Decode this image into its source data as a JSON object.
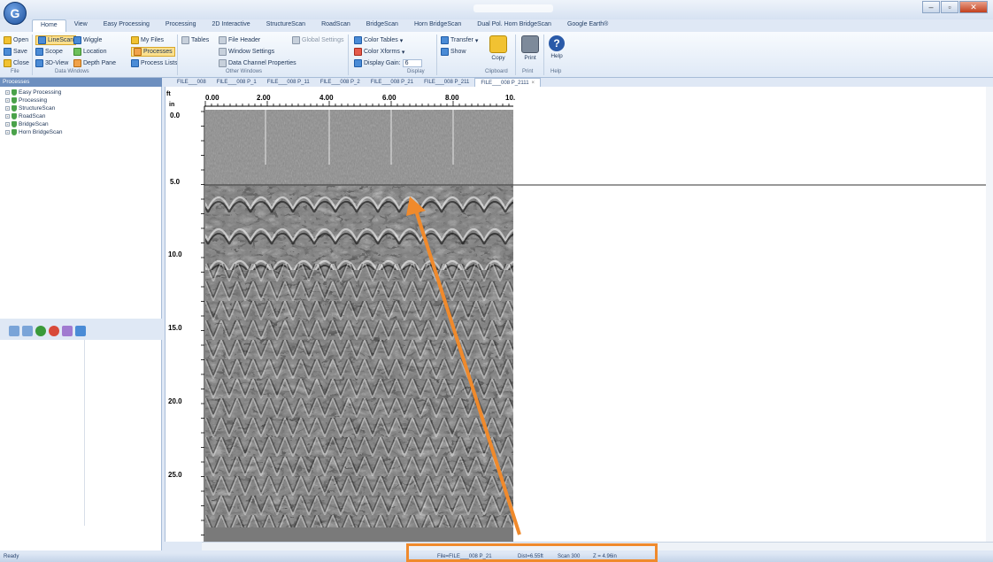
{
  "window": {
    "title_blurred": true,
    "orb_label": "G"
  },
  "tabs": [
    {
      "label": "Home",
      "active": true
    },
    {
      "label": "View"
    },
    {
      "label": "Easy Processing"
    },
    {
      "label": "Processing"
    },
    {
      "label": "2D Interactive"
    },
    {
      "label": "StructureScan"
    },
    {
      "label": "RoadScan"
    },
    {
      "label": "BridgeScan"
    },
    {
      "label": "Horn BridgeScan"
    },
    {
      "label": "Dual Pol. Horn BridgeScan"
    },
    {
      "label": "Google Earth®"
    }
  ],
  "ribbon": {
    "file": {
      "open": "Open",
      "save": "Save",
      "close": "Close",
      "group": "File"
    },
    "data_windows": {
      "linescan": "LineScan",
      "wiggle": "Wiggle",
      "scope": "Scope",
      "location": "Location",
      "view3d": "3D-View",
      "depth_pane": "Depth Pane",
      "group": "Data Windows"
    },
    "files": {
      "my_files": "My Files",
      "processes": "Processes",
      "process_lists": "Process Lists"
    },
    "other_windows": {
      "tables": "Tables",
      "file_header": "File Header",
      "window_settings": "Window Settings",
      "data_channel_properties": "Data Channel Properties",
      "global_settings": "Global Settings",
      "group": "Other Windows"
    },
    "display": {
      "color_tables": "Color Tables",
      "color_xforms": "Color Xforms",
      "display_gain_label": "Display Gain:",
      "display_gain_value": "6",
      "group": "Display"
    },
    "clipboard": {
      "transfer": "Transfer",
      "show": "Show",
      "copy": "Copy",
      "group": "Clipboard"
    },
    "print": {
      "print": "Print",
      "group": "Print"
    },
    "help": {
      "help": "Help",
      "group": "Help"
    }
  },
  "left_panel": {
    "header": "Processes",
    "tree": [
      "Easy Processing",
      "Processing",
      "StructureScan",
      "RoadScan",
      "BridgeScan",
      "Horn BridgeScan"
    ]
  },
  "doc_tabs": [
    {
      "label": "FILE___008"
    },
    {
      "label": "FILE___008 P_1"
    },
    {
      "label": "FILE___008 P_11"
    },
    {
      "label": "FILE___008 P_2"
    },
    {
      "label": "FILE___008 P_21"
    },
    {
      "label": "FILE___008 P_211"
    },
    {
      "label": "FILE___008 P_2111",
      "active": true,
      "close": "×"
    }
  ],
  "scan": {
    "x_unit": "ft",
    "y_unit": "in",
    "x_ticks": [
      "0.00",
      "2.00",
      "4.00",
      "6.00",
      "8.00",
      "10."
    ],
    "y_ticks": [
      "0.0",
      "5.0",
      "10.0",
      "15.0",
      "20.0",
      "25.0"
    ]
  },
  "status": {
    "ready": "Ready",
    "file": "File=FILE___008 P_21",
    "dist": "Dist=6.55ft",
    "scan": "Scan 300",
    "z": "Z = 4.96in"
  }
}
